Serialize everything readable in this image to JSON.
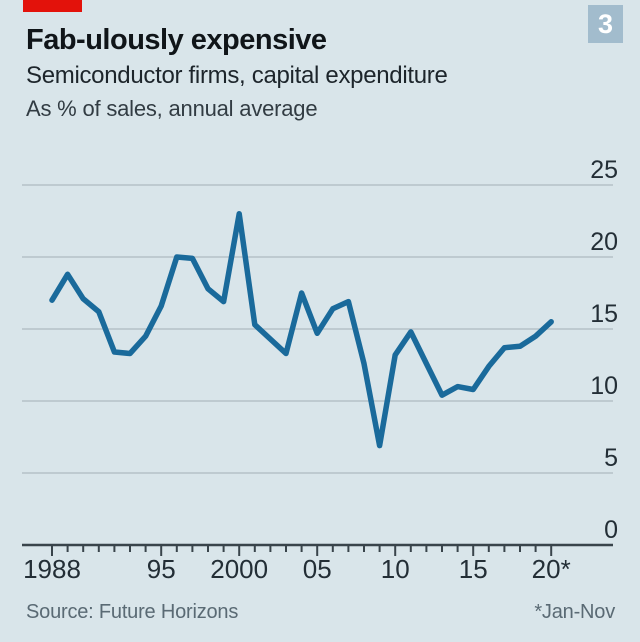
{
  "colors": {
    "background": "#d9e5ea",
    "accent_red": "#e3120b",
    "line": "#1a6a9b",
    "grid": "#b6c2c8",
    "axis": "#39444b",
    "tick_label": "#232e36",
    "badge_bg": "#a2bccd",
    "badge_text": "#ffffff"
  },
  "header": {
    "title": "Fab-ulously expensive",
    "subtitle": "Semiconductor firms, capital expenditure",
    "unit_note": "As % of sales, annual average",
    "badge_number": "3"
  },
  "chart_data": {
    "type": "line",
    "title": "Semiconductor firms, capital expenditure",
    "xlabel": "",
    "ylabel": "Capital expenditure as % of sales",
    "x": [
      1988,
      1989,
      1990,
      1991,
      1992,
      1993,
      1994,
      1995,
      1996,
      1997,
      1998,
      1999,
      2000,
      2001,
      2002,
      2003,
      2004,
      2005,
      2006,
      2007,
      2008,
      2009,
      2010,
      2011,
      2012,
      2013,
      2014,
      2015,
      2016,
      2017,
      2018,
      2019,
      2020
    ],
    "values": [
      17.0,
      18.8,
      17.1,
      16.2,
      13.4,
      13.3,
      14.5,
      16.6,
      20.0,
      19.9,
      17.8,
      16.9,
      23.0,
      15.3,
      14.3,
      13.3,
      17.5,
      14.7,
      16.4,
      16.9,
      12.6,
      6.9,
      13.2,
      14.8,
      12.6,
      10.4,
      11.0,
      10.8,
      12.4,
      13.7,
      13.8,
      14.5,
      15.5
    ],
    "ylim": [
      0,
      25
    ],
    "y_ticks": [
      0,
      5,
      10,
      15,
      20,
      25
    ],
    "x_major_tick_years": [
      1988,
      1995,
      2000,
      2005,
      2010,
      2015,
      2020
    ],
    "x_tick_labels": [
      "1988",
      "95",
      "2000",
      "05",
      "10",
      "15",
      "20*"
    ],
    "grid": "horizontal",
    "legend": "none",
    "y_axis_side": "right"
  },
  "footer": {
    "source": "Source: Future Horizons",
    "footnote": "*Jan-Nov"
  }
}
